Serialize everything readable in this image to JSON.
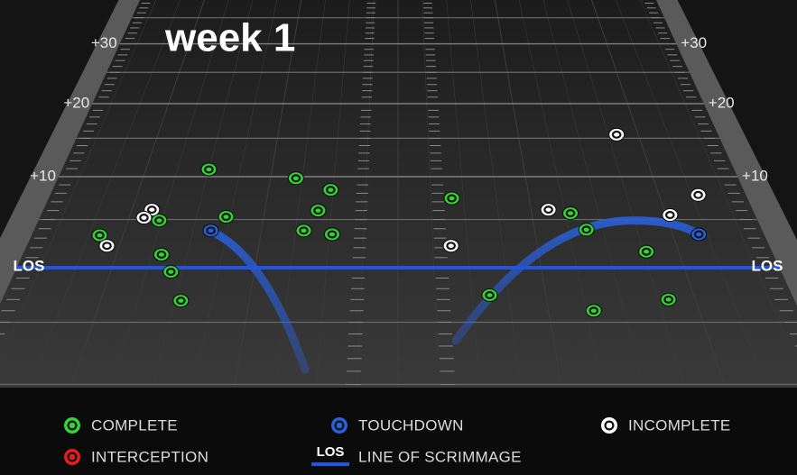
{
  "chart_data": {
    "type": "scatter",
    "title": "week 1",
    "xlim": [
      -26.65,
      26.65
    ],
    "ylim": [
      -10,
      38
    ],
    "yticks": [
      {
        "value": 0,
        "label": "LOS"
      },
      {
        "value": 10,
        "label": "+10"
      },
      {
        "value": 20,
        "label": "+20"
      },
      {
        "value": 30,
        "label": "+30"
      }
    ],
    "los_color": "#1f55e0",
    "series": [
      {
        "name": "COMPLETE",
        "color": "#35d235",
        "x": [
          -15.0,
          -8.0,
          -5.2,
          -6.0,
          -12.8,
          -17.7,
          -21.7,
          -6.9,
          -4.8,
          -16.8,
          -15.8,
          -14.6,
          4.1,
          12.9,
          13.8,
          17.7,
          6.2,
          13.0,
          18.2
        ],
        "values": [
          10.9,
          9.8,
          8.4,
          6.0,
          5.3,
          4.9,
          3.3,
          3.8,
          3.4,
          1.3,
          -0.4,
          -3.1,
          7.4,
          5.7,
          3.9,
          1.6,
          -2.6,
          -4.0,
          -3.0
        ]
      },
      {
        "name": "TOUCHDOWN",
        "color": "#2a5fd8",
        "x": [
          -13.7,
          21.9
        ],
        "values": [
          3.8,
          3.4
        ]
      },
      {
        "name": "INCOMPLETE",
        "color": "#ffffff",
        "x": [
          18.2,
          23.0,
          11.3,
          20.3,
          -18.5,
          -18.9,
          -20.9,
          3.8
        ],
        "values": [
          15.5,
          7.8,
          6.1,
          5.5,
          6.1,
          5.2,
          2.2,
          2.2
        ]
      },
      {
        "name": "INTERCEPTION",
        "color": "#e02020",
        "x": [],
        "values": []
      }
    ],
    "legend_los": {
      "icon": "LOS",
      "label": "LINE OF SCRIMMAGE"
    }
  }
}
